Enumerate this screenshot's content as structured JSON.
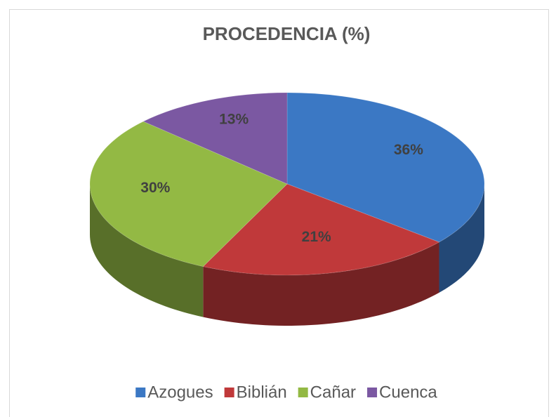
{
  "chart_data": {
    "type": "pie",
    "title": "PROCEDENCIA (%)",
    "categories": [
      "Azogues",
      "Biblián",
      "Cañar",
      "Cuenca"
    ],
    "values": [
      36,
      21,
      30,
      13
    ],
    "value_labels": [
      "36%",
      "21%",
      "30%",
      "13%"
    ],
    "colors": [
      "#3b78c4",
      "#c0393a",
      "#93b944",
      "#7b58a2"
    ],
    "legend": "bottom"
  }
}
